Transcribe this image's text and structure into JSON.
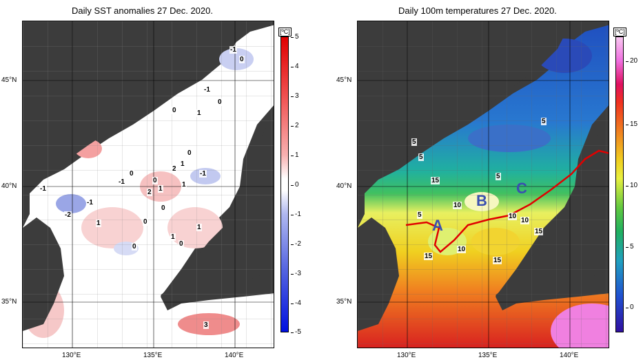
{
  "left_map": {
    "title": "Daily SST anomalies 27 Dec. 2020.",
    "unit": "[ºC]",
    "colorbar_ticks": [
      "5",
      "4",
      "3",
      "2",
      "1",
      "0",
      "-1",
      "-2",
      "-3",
      "-4",
      "-5"
    ],
    "contour_labels": [
      "-1",
      "0",
      "-1",
      "0",
      "0",
      "1",
      "0",
      "1",
      "0",
      "2",
      "-1",
      "0",
      "-1",
      "-1",
      "2",
      "1",
      "-1",
      "1",
      "1",
      "-2",
      "0",
      "0",
      "1",
      "1",
      "0",
      "0",
      "3"
    ]
  },
  "right_map": {
    "title": "Daily 100m temperatures 27 Dec. 2020.",
    "unit": "[ºC]",
    "colorbar_ticks": [
      "20",
      "15",
      "10",
      "5",
      "0"
    ],
    "contour_labels": [
      "5",
      "5",
      "5",
      "5",
      "5",
      "10",
      "10",
      "10",
      "15",
      "15",
      "10",
      "15",
      "15"
    ],
    "letters": [
      "A",
      "B",
      "C"
    ]
  },
  "axes": {
    "lat_labels": [
      "45°N",
      "40°N",
      "35°N"
    ],
    "lon_labels": [
      "130°E",
      "135°E",
      "140°E"
    ]
  },
  "colors": {
    "land": "#3c3c3c",
    "sea_neutral": "#ffffff",
    "front_line": "#e00000",
    "letter": "#3a4fb0"
  }
}
